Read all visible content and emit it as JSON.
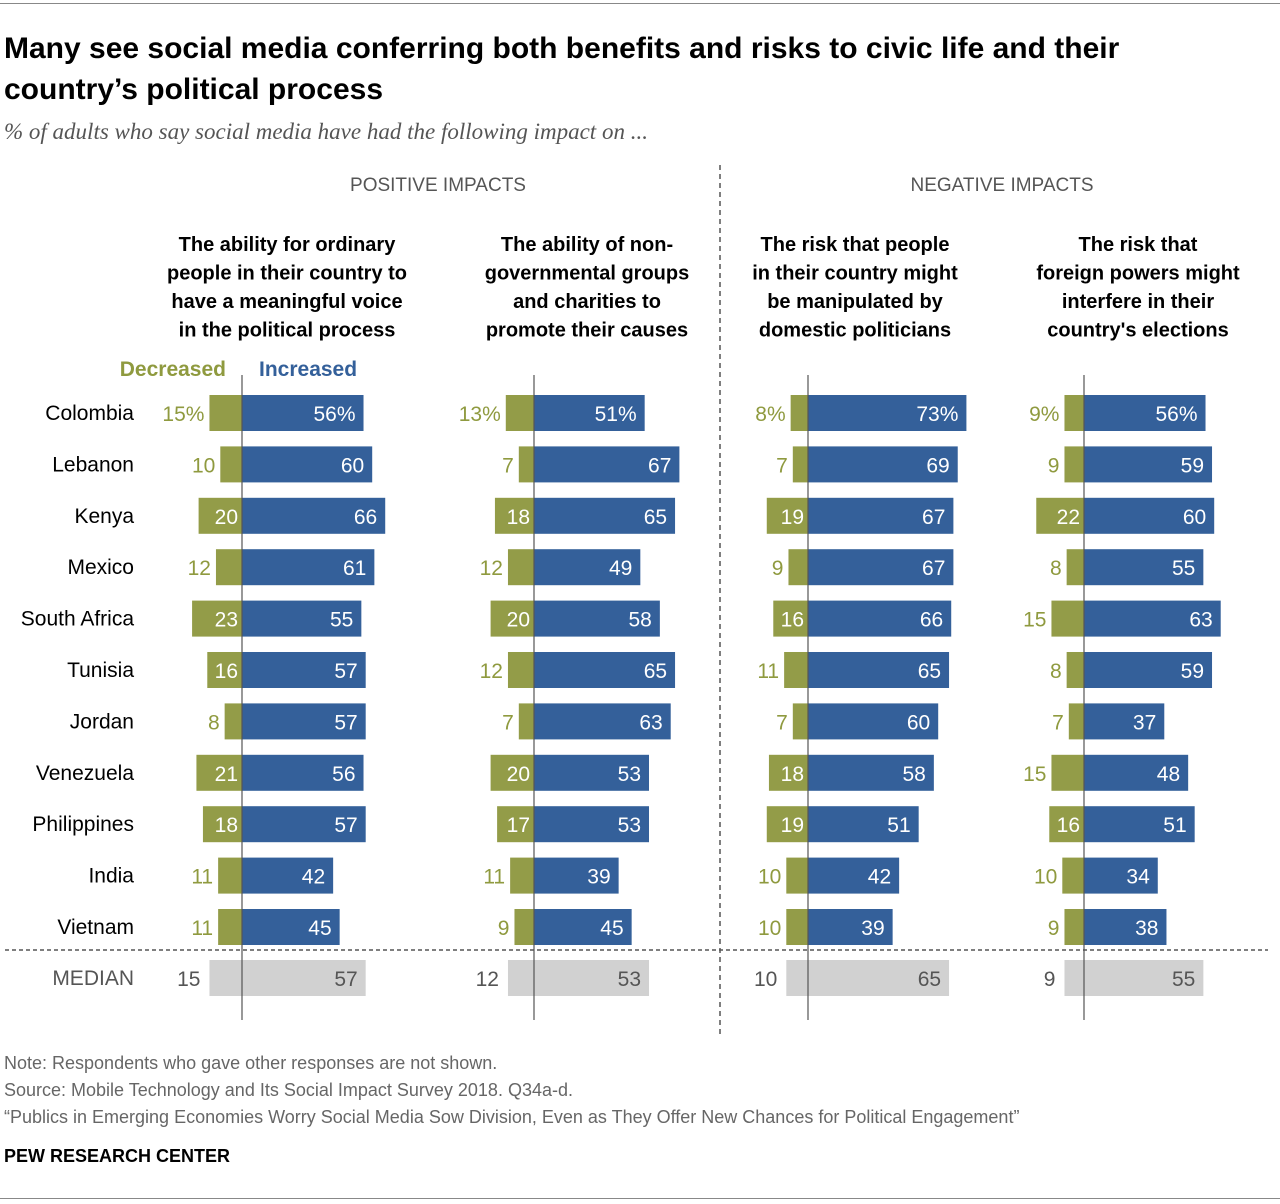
{
  "title": "Many see social media conferring both benefits and risks to civic life and their country’s political process",
  "subtitle": "% of adults who say social media have had the following impact on ...",
  "notes": [
    "Note: Respondents who gave other responses are not shown.",
    "Source: Mobile Technology and Its Social Impact Survey 2018. Q34a-d.",
    "“Publics in Emerging Economies Worry Social Media Sow Division, Even as They Offer New Chances for Political Engagement”"
  ],
  "brand": "PEW RESEARCH CENTER",
  "chart_data": {
    "type": "bar",
    "orientation": "horizontal-diverging",
    "sections": [
      "POSITIVE IMPACTS",
      "NEGATIVE IMPACTS"
    ],
    "legend": {
      "decreased": "Decreased",
      "increased": "Increased"
    },
    "categories": [
      "Colombia",
      "Lebanon",
      "Kenya",
      "Mexico",
      "South Africa",
      "Tunisia",
      "Jordan",
      "Venezuela",
      "Philippines",
      "India",
      "Vietnam"
    ],
    "median_label": "MEDIAN",
    "colors": {
      "decreased": "#939c48",
      "increased": "#34609a",
      "median": "#d1d1d1",
      "decreased_text": "#8f9a3f"
    },
    "panels": [
      {
        "section": "POSITIVE IMPACTS",
        "title": [
          "The ability for ordinary",
          "people in their country to",
          "have a meaningful voice",
          "in the political process"
        ],
        "decreased": [
          15,
          10,
          20,
          12,
          23,
          16,
          8,
          21,
          18,
          11,
          11
        ],
        "increased": [
          56,
          60,
          66,
          61,
          55,
          57,
          57,
          56,
          57,
          42,
          45
        ],
        "median": [
          15,
          57
        ]
      },
      {
        "section": "POSITIVE IMPACTS",
        "title": [
          "The ability of non-",
          "governmental groups",
          "and charities to",
          "promote their causes"
        ],
        "decreased": [
          13,
          7,
          18,
          12,
          20,
          12,
          7,
          20,
          17,
          11,
          9
        ],
        "increased": [
          51,
          67,
          65,
          49,
          58,
          65,
          63,
          53,
          53,
          39,
          45
        ],
        "median": [
          12,
          53
        ]
      },
      {
        "section": "NEGATIVE IMPACTS",
        "title": [
          "The risk that people",
          "in their country might",
          "be manipulated by",
          "domestic politicians"
        ],
        "decreased": [
          8,
          7,
          19,
          9,
          16,
          11,
          7,
          18,
          19,
          10,
          10
        ],
        "increased": [
          73,
          69,
          67,
          67,
          66,
          65,
          60,
          58,
          51,
          42,
          39
        ],
        "median": [
          10,
          65
        ]
      },
      {
        "section": "NEGATIVE IMPACTS",
        "title": [
          "The risk that",
          "foreign powers might",
          "interfere in their",
          "country's elections"
        ],
        "decreased": [
          9,
          9,
          22,
          8,
          15,
          8,
          7,
          15,
          16,
          10,
          9
        ],
        "increased": [
          56,
          59,
          60,
          55,
          63,
          59,
          37,
          48,
          51,
          34,
          38
        ],
        "median": [
          9,
          55
        ]
      }
    ]
  }
}
